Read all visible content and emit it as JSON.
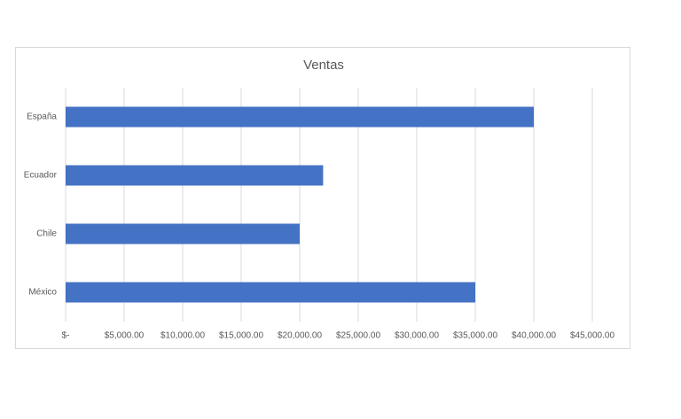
{
  "chart_data": {
    "type": "bar",
    "orientation": "horizontal",
    "title": "Ventas",
    "categories": [
      "España",
      "Ecuador",
      "Chile",
      "México"
    ],
    "values": [
      40000,
      22000,
      20000,
      35000
    ],
    "color": "#4472c4",
    "xlim": [
      0,
      45000
    ],
    "xticks": [
      {
        "value": 0,
        "label": "$-"
      },
      {
        "value": 5000,
        "label": "$5,000.00"
      },
      {
        "value": 10000,
        "label": "$10,000.00"
      },
      {
        "value": 15000,
        "label": "$15,000.00"
      },
      {
        "value": 20000,
        "label": "$20,000.00"
      },
      {
        "value": 25000,
        "label": "$25,000.00"
      },
      {
        "value": 30000,
        "label": "$30,000.00"
      },
      {
        "value": 35000,
        "label": "$35,000.00"
      },
      {
        "value": 40000,
        "label": "$40,000.00"
      },
      {
        "value": 45000,
        "label": "$45,000.00"
      }
    ],
    "grid": true
  }
}
